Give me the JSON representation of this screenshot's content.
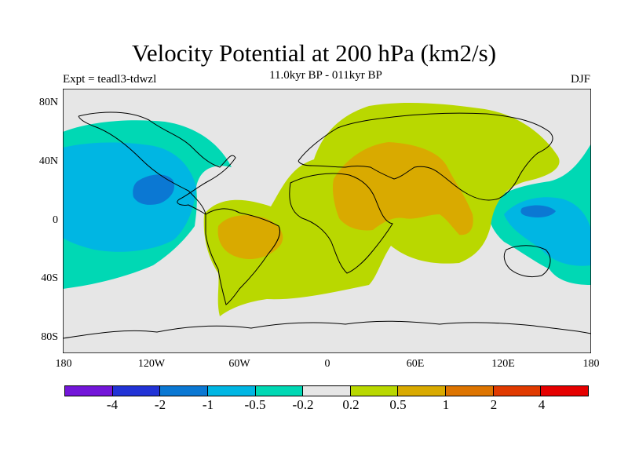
{
  "title": "Velocity Potential at 200 hPa (km2/s)",
  "subtitle": "11.0kyr BP - 011kyr BP",
  "experiment": "Expt = teadl3-tdwzl",
  "season": "DJF",
  "lat_ticks": [
    "80N",
    "40N",
    "0",
    "40S",
    "80S"
  ],
  "lon_ticks": [
    "180",
    "120W",
    "60W",
    "0",
    "60E",
    "120E",
    "180"
  ],
  "colorbar": {
    "colors": [
      "#7316d9",
      "#2233d6",
      "#0b78d3",
      "#00b6e3",
      "#00d8b4",
      "#e6e6e6",
      "#b9d800",
      "#d9aa00",
      "#dd7400",
      "#e03a00",
      "#e50000"
    ],
    "labels": [
      "-4",
      "-2",
      "-1",
      "-0.5",
      "-0.2",
      "0.2",
      "0.5",
      "1",
      "2",
      "4"
    ]
  }
}
